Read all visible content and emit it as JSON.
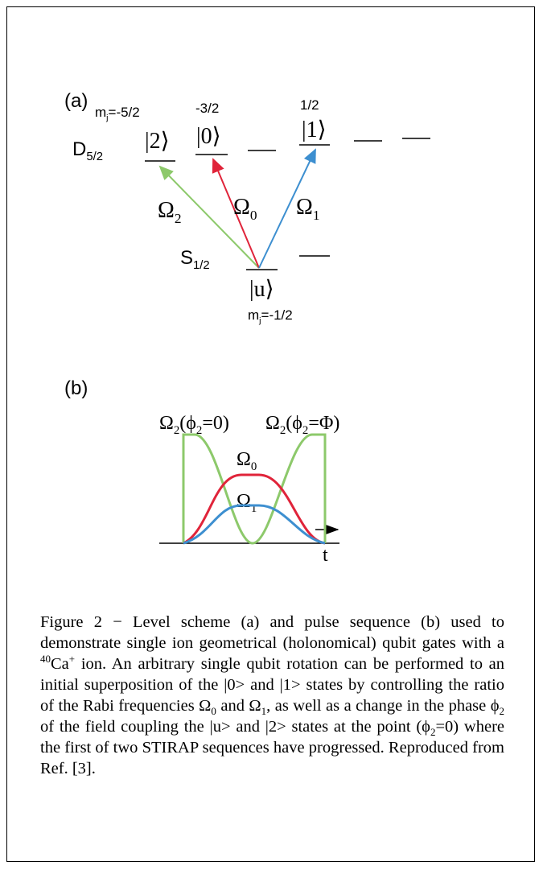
{
  "panel_a": {
    "label": "(a)",
    "mj_left": [
      {
        "text": "m"
      },
      {
        "sub": "j"
      },
      {
        "text": "=-5/2"
      }
    ],
    "mj_mid": [
      {
        "text": "-3/2"
      }
    ],
    "mj_right": [
      {
        "text": "1/2"
      }
    ],
    "d_level": [
      {
        "text": "D"
      },
      {
        "sub": "5/2"
      }
    ],
    "ket_2": [
      {
        "text": "|2⟩"
      }
    ],
    "ket_0": [
      {
        "text": "|0⟩"
      }
    ],
    "ket_1": [
      {
        "text": "|1⟩"
      }
    ],
    "omega_2": [
      {
        "text": "Ω"
      },
      {
        "sub": "2"
      }
    ],
    "omega_0": [
      {
        "text": "Ω"
      },
      {
        "sub": "0"
      }
    ],
    "omega_1": [
      {
        "text": "Ω"
      },
      {
        "sub": "1"
      }
    ],
    "s_level": [
      {
        "text": "S"
      },
      {
        "sub": "1/2"
      }
    ],
    "ket_u": [
      {
        "text": "|u⟩"
      }
    ],
    "mj_bottom": [
      {
        "text": "m"
      },
      {
        "sub": "j"
      },
      {
        "text": "=-1/2"
      }
    ]
  },
  "panel_b": {
    "label": "(b)",
    "pulse_omega2_start": [
      {
        "text": "Ω"
      },
      {
        "sub": "2"
      },
      {
        "text": "(ϕ"
      },
      {
        "sub": "2"
      },
      {
        "text": "=0)"
      }
    ],
    "pulse_omega2_end": [
      {
        "text": "Ω"
      },
      {
        "sub": "2"
      },
      {
        "text": "(ϕ"
      },
      {
        "sub": "2"
      },
      {
        "text": "=Φ)"
      }
    ],
    "pulse_omega0": [
      {
        "text": "Ω"
      },
      {
        "sub": "0"
      }
    ],
    "pulse_omega1": [
      {
        "text": "Ω"
      },
      {
        "sub": "1"
      }
    ],
    "time_axis": [
      {
        "text": "t"
      }
    ]
  },
  "caption": [
    {
      "text": "Figure 2 − Level scheme (a) and pulse sequence (b) used to demonstrate single ion geometrical (holonomical) qubit gates with a "
    },
    {
      "sup": "40"
    },
    {
      "text": "Ca"
    },
    {
      "sup": "+"
    },
    {
      "text": " ion. An arbitrary single qubit rotation can be performed to an initial superposition of the |0> and |1> states by controlling the ratio of the Rabi frequencies Ω"
    },
    {
      "sub": "0"
    },
    {
      "text": " and Ω"
    },
    {
      "sub": "1"
    },
    {
      "text": ", as well as a change in the phase ϕ"
    },
    {
      "sub": "2"
    },
    {
      "text": " of the field coupling the |u> and |2> states at the point (ϕ"
    },
    {
      "sub": "2"
    },
    {
      "text": "=0) where the first of two STIRAP sequences have progressed. Reproduced from Ref. [3]."
    }
  ]
}
